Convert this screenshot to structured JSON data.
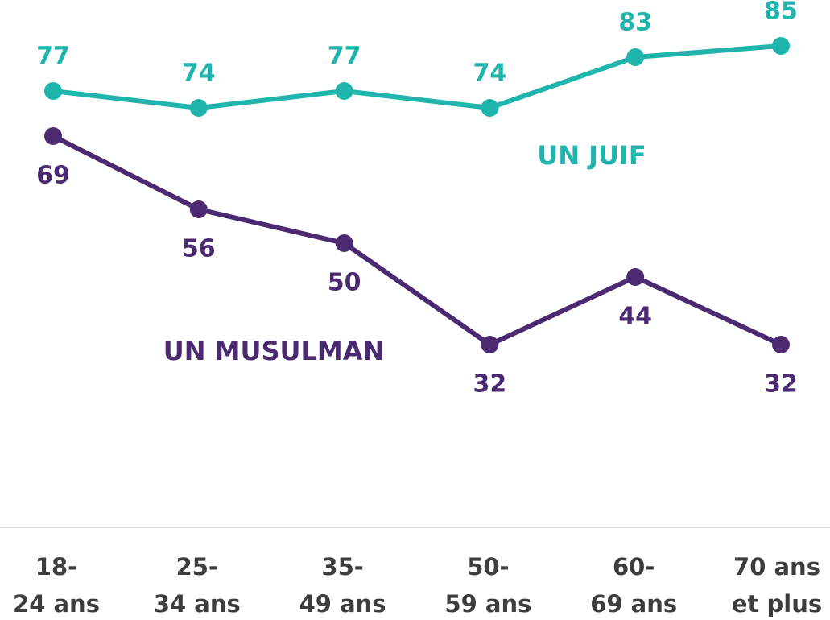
{
  "chart_data": {
    "type": "line",
    "categories": [
      [
        "18-",
        "24 ans"
      ],
      [
        "25-",
        "34 ans"
      ],
      [
        "35-",
        "49 ans"
      ],
      [
        "50-",
        "59 ans"
      ],
      [
        "60-",
        "69 ans"
      ],
      [
        "70 ans",
        "et plus"
      ]
    ],
    "series": [
      {
        "name": "UN JUIF",
        "color": "#1fb5ad",
        "values": [
          77,
          74,
          77,
          74,
          83,
          85
        ]
      },
      {
        "name": "UN MUSULMAN",
        "color": "#4b2a72",
        "values": [
          69,
          56,
          50,
          32,
          44,
          32
        ]
      }
    ],
    "ylim": [
      0,
      93
    ]
  }
}
